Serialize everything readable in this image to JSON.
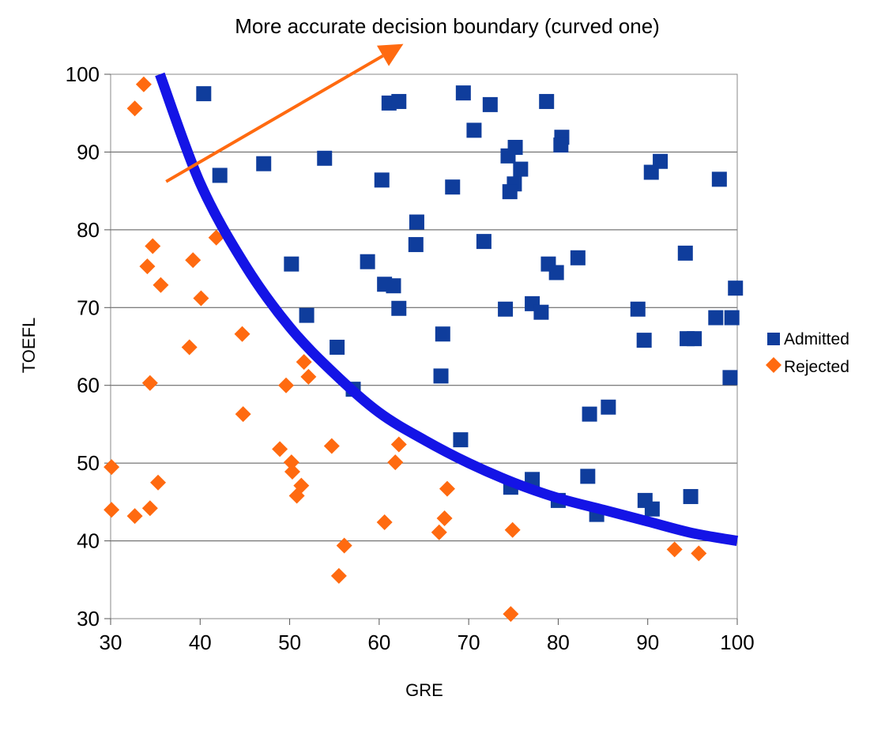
{
  "chart_data": {
    "type": "scatter",
    "title": "",
    "annotation": "More accurate decision boundary (curved one)",
    "xlabel": "GRE",
    "ylabel": "TOEFL",
    "xlim": [
      30,
      100
    ],
    "ylim": [
      30,
      100
    ],
    "xticks": [
      30,
      40,
      50,
      60,
      70,
      80,
      90,
      100
    ],
    "yticks": [
      30,
      40,
      50,
      60,
      70,
      80,
      90,
      100
    ],
    "grid": "horizontal",
    "legend_position": "right",
    "colors": {
      "admitted": "#0f3d9c",
      "rejected": "#ff6a10",
      "boundary": "#1414e6",
      "arrow": "#ff6a10"
    },
    "series": [
      {
        "name": "Admitted",
        "marker": "square",
        "points": [
          [
            40.4,
            97.5
          ],
          [
            42.2,
            87
          ],
          [
            47.1,
            88.5
          ],
          [
            53.9,
            89.2
          ],
          [
            61.1,
            96.3
          ],
          [
            62.2,
            96.5
          ],
          [
            60.3,
            86.4
          ],
          [
            69.4,
            97.6
          ],
          [
            70.6,
            92.8
          ],
          [
            72.4,
            96.1
          ],
          [
            74.4,
            89.5
          ],
          [
            75.2,
            90.6
          ],
          [
            75.8,
            87.8
          ],
          [
            75.1,
            85.9
          ],
          [
            74.6,
            84.9
          ],
          [
            78.7,
            96.5
          ],
          [
            80.4,
            91.9
          ],
          [
            80.3,
            90.9
          ],
          [
            68.2,
            85.5
          ],
          [
            64.2,
            81
          ],
          [
            64.1,
            78.1
          ],
          [
            71.7,
            78.5
          ],
          [
            50.2,
            75.6
          ],
          [
            58.7,
            75.9
          ],
          [
            60.6,
            73
          ],
          [
            61.6,
            72.8
          ],
          [
            62.2,
            69.9
          ],
          [
            51.9,
            69
          ],
          [
            55.3,
            64.9
          ],
          [
            57.1,
            59.5
          ],
          [
            67.1,
            66.6
          ],
          [
            66.9,
            61.2
          ],
          [
            69.1,
            53
          ],
          [
            74.1,
            69.8
          ],
          [
            77.1,
            70.5
          ],
          [
            78.1,
            69.4
          ],
          [
            78.9,
            75.6
          ],
          [
            79.8,
            74.5
          ],
          [
            82.2,
            76.4
          ],
          [
            88.9,
            69.8
          ],
          [
            89.6,
            65.8
          ],
          [
            90.4,
            87.4
          ],
          [
            91.4,
            88.8
          ],
          [
            94.2,
            77
          ],
          [
            98.0,
            86.5
          ],
          [
            99.8,
            72.5
          ],
          [
            97.6,
            68.7
          ],
          [
            99.4,
            68.7
          ],
          [
            94.4,
            66
          ],
          [
            95.2,
            66
          ],
          [
            99.2,
            61
          ],
          [
            83.5,
            56.3
          ],
          [
            85.6,
            57.2
          ],
          [
            74.7,
            46.9
          ],
          [
            77.1,
            47.9
          ],
          [
            80.0,
            45.2
          ],
          [
            83.3,
            48.3
          ],
          [
            84.3,
            43.4
          ],
          [
            89.7,
            45.2
          ],
          [
            90.5,
            44.1
          ],
          [
            94.8,
            45.7
          ]
        ]
      },
      {
        "name": "Rejected",
        "marker": "diamond",
        "points": [
          [
            33.7,
            98.7
          ],
          [
            32.7,
            95.6
          ],
          [
            34.7,
            77.9
          ],
          [
            34.1,
            75.3
          ],
          [
            35.6,
            72.9
          ],
          [
            39.2,
            76.1
          ],
          [
            40.1,
            71.2
          ],
          [
            41.8,
            79
          ],
          [
            38.8,
            64.9
          ],
          [
            34.4,
            60.3
          ],
          [
            44.7,
            66.6
          ],
          [
            44.8,
            56.3
          ],
          [
            49.6,
            60
          ],
          [
            51.6,
            63
          ],
          [
            52.1,
            61.1
          ],
          [
            30.1,
            49.5
          ],
          [
            30.1,
            44
          ],
          [
            32.7,
            43.2
          ],
          [
            34.4,
            44.2
          ],
          [
            35.3,
            47.5
          ],
          [
            48.9,
            51.8
          ],
          [
            50.2,
            50.1
          ],
          [
            50.3,
            48.9
          ],
          [
            50.8,
            45.8
          ],
          [
            51.3,
            47.1
          ],
          [
            54.7,
            52.2
          ],
          [
            55.5,
            35.5
          ],
          [
            56.1,
            39.4
          ],
          [
            60.6,
            42.4
          ],
          [
            61.8,
            50.1
          ],
          [
            62.2,
            52.4
          ],
          [
            66.7,
            41.1
          ],
          [
            67.3,
            42.9
          ],
          [
            67.6,
            46.7
          ],
          [
            74.9,
            41.4
          ],
          [
            74.7,
            30.6
          ],
          [
            93.0,
            38.9
          ],
          [
            95.7,
            38.4
          ]
        ]
      }
    ],
    "boundary_curve": {
      "name": "curved decision boundary",
      "points": [
        [
          35.5,
          100
        ],
        [
          40,
          86
        ],
        [
          45,
          75.5
        ],
        [
          50,
          67.5
        ],
        [
          55,
          61.5
        ],
        [
          60,
          56.5
        ],
        [
          65,
          53
        ],
        [
          70,
          50
        ],
        [
          75,
          47.5
        ],
        [
          80,
          45.5
        ],
        [
          85,
          44
        ],
        [
          90,
          42.5
        ],
        [
          95,
          41
        ],
        [
          100,
          40
        ]
      ]
    },
    "arrow": {
      "from": [
        36.2,
        86.2
      ],
      "to": [
        62.7,
        103.9
      ]
    }
  }
}
